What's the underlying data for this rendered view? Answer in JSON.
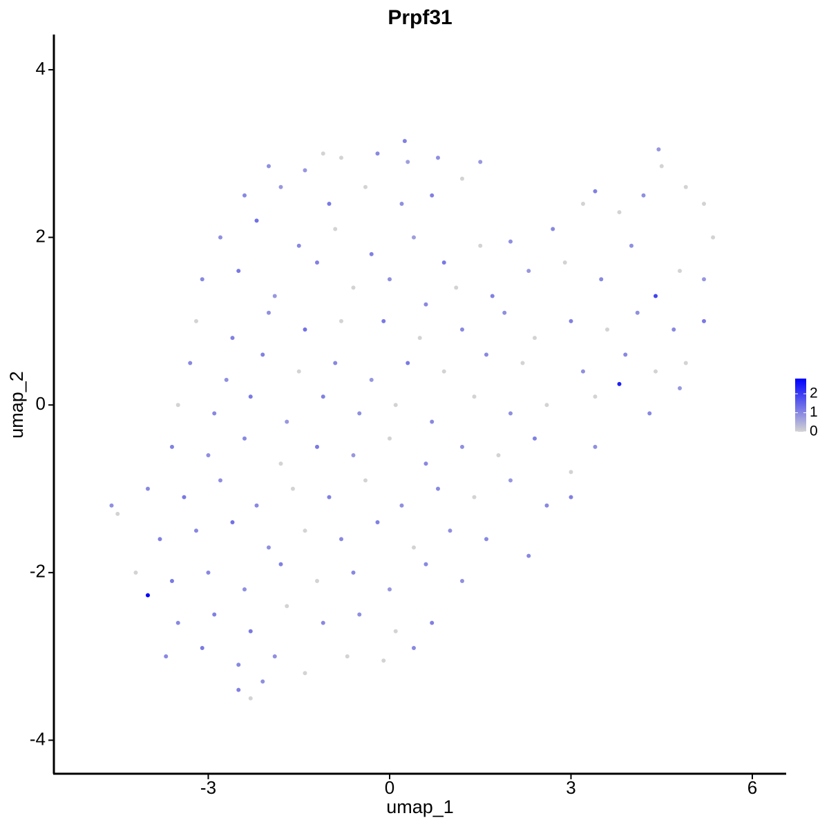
{
  "chart_data": {
    "type": "scatter",
    "title": "Prpf31",
    "x_label": "umap_1",
    "y_label": "umap_2",
    "xlim": [
      -5.554,
      6.56
    ],
    "ylim": [
      -4.4,
      4.42
    ],
    "xticks": [
      -3,
      0,
      3,
      6
    ],
    "yticks": [
      -4,
      -2,
      0,
      2,
      4
    ],
    "color_low": "#d3d3d3",
    "color_high": "#0000ff",
    "colorbar_lim": [
      0,
      2.8
    ],
    "colorbar_ticks": [
      0,
      1,
      2
    ],
    "x": [
      -2.0,
      -1.4,
      -0.8,
      -0.2,
      0.3,
      0.8,
      0.25,
      -1.1,
      -2.4,
      -1.8,
      -1.0,
      -0.4,
      0.2,
      0.7,
      1.2,
      1.5,
      -2.8,
      -2.2,
      -1.5,
      -0.9,
      -0.3,
      0.4,
      0.9,
      1.5,
      2.0,
      2.7,
      3.2,
      3.4,
      3.8,
      4.2,
      4.5,
      4.45,
      4.9,
      5.2,
      5.35,
      -3.1,
      -2.5,
      -1.9,
      -1.2,
      -0.6,
      0.0,
      0.6,
      1.1,
      1.7,
      2.3,
      2.9,
      3.5,
      4.0,
      4.4,
      4.8,
      5.2,
      -3.2,
      -2.6,
      -2.0,
      -1.4,
      -0.8,
      -0.1,
      0.5,
      1.2,
      1.9,
      2.4,
      3.0,
      3.6,
      4.1,
      4.7,
      5.2,
      -3.3,
      -2.7,
      -2.1,
      -1.5,
      -0.9,
      -0.3,
      0.3,
      0.9,
      1.6,
      2.2,
      3.2,
      3.9,
      4.4,
      4.9,
      -3.5,
      -2.9,
      -2.3,
      -1.7,
      -1.1,
      -0.5,
      0.1,
      0.7,
      1.4,
      2.0,
      2.6,
      3.4,
      3.8,
      4.3,
      4.8,
      -3.6,
      -3.0,
      -2.4,
      -1.8,
      -1.2,
      -0.6,
      0.0,
      0.6,
      1.2,
      1.8,
      2.4,
      3.0,
      3.4,
      -4.0,
      -3.4,
      -2.8,
      -2.2,
      -1.6,
      -1.0,
      -0.4,
      0.2,
      0.8,
      1.4,
      2.0,
      2.6,
      3.0,
      -4.5,
      -4.6,
      -3.8,
      -3.2,
      -2.6,
      -2.0,
      -1.4,
      -0.8,
      -0.2,
      0.4,
      1.0,
      1.6,
      2.3,
      -4.2,
      -3.6,
      -3.0,
      -2.4,
      -1.8,
      -1.2,
      -0.6,
      0.0,
      0.6,
      1.2,
      -4.0,
      -3.5,
      -2.9,
      -2.3,
      -1.7,
      -1.1,
      -0.5,
      0.1,
      0.7,
      -3.7,
      -3.1,
      -2.5,
      -1.9,
      -1.4,
      -0.7,
      -0.1,
      0.4,
      -2.5,
      -2.3,
      -2.1
    ],
    "y": [
      2.85,
      2.8,
      2.95,
      3.0,
      2.9,
      2.95,
      3.15,
      3.0,
      2.5,
      2.6,
      2.4,
      2.6,
      2.4,
      2.5,
      2.7,
      2.9,
      2.0,
      2.2,
      1.9,
      2.1,
      1.8,
      2.0,
      1.7,
      1.9,
      1.95,
      2.1,
      2.4,
      2.55,
      2.3,
      2.5,
      2.85,
      3.05,
      2.6,
      2.4,
      2.0,
      1.5,
      1.6,
      1.3,
      1.7,
      1.4,
      1.5,
      1.2,
      1.4,
      1.3,
      1.6,
      1.7,
      1.5,
      1.9,
      1.3,
      1.6,
      1.5,
      1.0,
      0.8,
      1.1,
      0.9,
      1.0,
      1.0,
      0.8,
      0.9,
      1.1,
      0.8,
      1.0,
      0.9,
      1.1,
      0.9,
      1.0,
      0.5,
      0.3,
      0.6,
      0.4,
      0.5,
      0.3,
      0.5,
      0.4,
      0.6,
      0.5,
      0.4,
      0.6,
      0.4,
      0.5,
      0.0,
      -0.1,
      0.1,
      -0.2,
      0.1,
      -0.1,
      0.0,
      -0.2,
      0.1,
      -0.1,
      0.0,
      0.1,
      0.25,
      -0.1,
      0.2,
      -0.5,
      -0.6,
      -0.4,
      -0.7,
      -0.5,
      -0.6,
      -0.4,
      -0.7,
      -0.5,
      -0.6,
      -0.4,
      -0.8,
      -0.5,
      -1.0,
      -1.1,
      -0.9,
      -1.2,
      -1.0,
      -1.1,
      -0.9,
      -1.2,
      -1.0,
      -1.1,
      -0.9,
      -1.2,
      -1.1,
      -1.3,
      -1.2,
      -1.6,
      -1.5,
      -1.4,
      -1.7,
      -1.5,
      -1.6,
      -1.4,
      -1.7,
      -1.5,
      -1.6,
      -1.8,
      -2.0,
      -2.1,
      -2.0,
      -2.2,
      -1.9,
      -2.1,
      -2.0,
      -2.2,
      -1.9,
      -2.1,
      -2.27,
      -2.6,
      -2.5,
      -2.7,
      -2.4,
      -2.6,
      -2.5,
      -2.7,
      -2.6,
      -3.0,
      -2.9,
      -3.1,
      -3.0,
      -3.2,
      -3.0,
      -3.05,
      -2.9,
      -3.4,
      -3.5,
      -3.3
    ],
    "values": [
      0.9,
      0.8,
      0,
      1.0,
      0.7,
      0.9,
      1.1,
      0,
      1.0,
      0.8,
      1.2,
      0,
      0.9,
      1.1,
      0,
      0.8,
      0.9,
      1.3,
      1.0,
      0,
      1.1,
      0.7,
      1.2,
      0,
      0.9,
      1.0,
      0,
      1.1,
      0,
      0.9,
      0,
      0.8,
      0,
      0,
      0,
      1.0,
      1.2,
      0.8,
      1.1,
      0,
      0.9,
      1.0,
      0,
      1.1,
      0.8,
      0,
      1.0,
      0.9,
      1.9,
      0,
      0.8,
      0,
      1.1,
      0.9,
      1.3,
      0,
      1.2,
      0,
      1.0,
      0.9,
      0,
      1.1,
      0,
      0.9,
      1.0,
      1.2,
      1.0,
      0.9,
      1.1,
      0,
      1.0,
      0.8,
      1.2,
      0,
      1.0,
      0,
      0.9,
      1.0,
      0,
      0,
      0,
      1.0,
      1.2,
      0.8,
      1.1,
      0.9,
      0,
      1.0,
      0,
      0.9,
      0,
      0,
      2.4,
      1.0,
      0.8,
      1.1,
      0.9,
      1.0,
      0,
      1.2,
      0.8,
      0,
      1.0,
      0.9,
      0,
      1.1,
      0,
      0.9,
      1.0,
      1.2,
      0.9,
      1.0,
      0,
      1.1,
      0,
      0.9,
      1.0,
      0,
      0.8,
      1.0,
      1.1,
      0,
      0.9,
      1.1,
      1.0,
      1.3,
      0.9,
      0,
      1.0,
      1.1,
      0,
      0.9,
      1.0,
      1.0,
      0,
      1.2,
      1.0,
      0.9,
      1.1,
      0,
      1.0,
      0.8,
      1.0,
      0.9,
      2.8,
      1.0,
      1.1,
      1.2,
      0,
      1.0,
      0.9,
      0,
      1.1,
      1.0,
      1.2,
      1.0,
      0.9,
      0,
      0,
      0,
      1.0,
      1.1,
      0,
      0.9
    ]
  }
}
